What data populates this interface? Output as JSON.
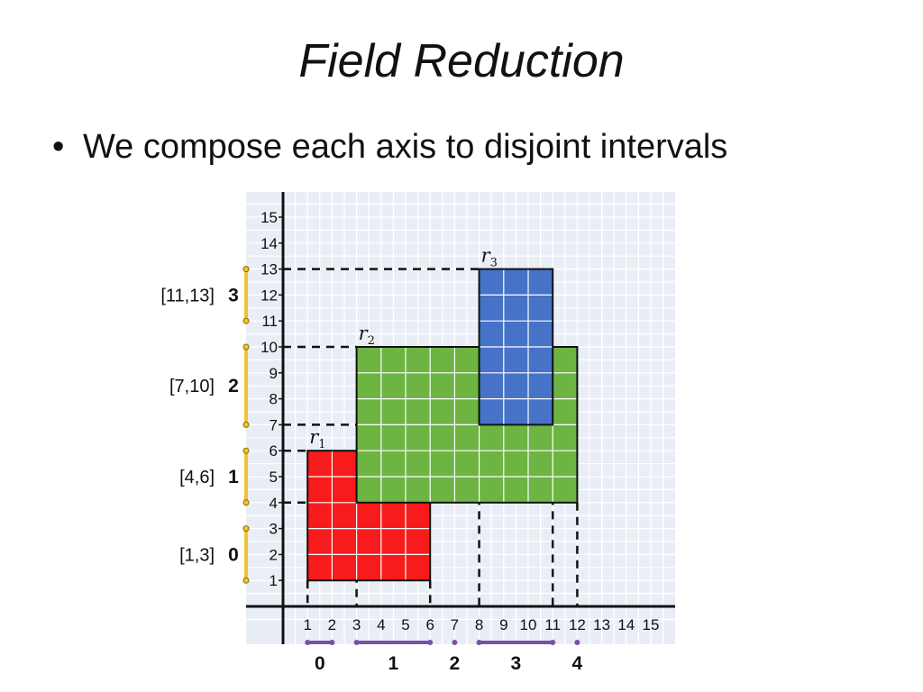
{
  "title": "Field Reduction",
  "bullet": "We compose each axis to disjoint intervals",
  "colors": {
    "r1": "#f81b1b",
    "r2": "#6db442",
    "r3": "#4672c8",
    "y_bar": "#f1c232",
    "x_bar": "#7a4fa8",
    "panel": "#e9eef6",
    "grid": "#ffffff"
  },
  "axis": {
    "min": 1,
    "max": 15,
    "ticks": [
      1,
      2,
      3,
      4,
      5,
      6,
      7,
      8,
      9,
      10,
      11,
      12,
      13,
      14,
      15
    ]
  },
  "rects": [
    {
      "label": "r",
      "sub": "1",
      "x": [
        1,
        6
      ],
      "y": [
        1,
        6
      ],
      "color": "#f81b1b"
    },
    {
      "label": "r",
      "sub": "2",
      "x": [
        3,
        12
      ],
      "y": [
        4,
        10
      ],
      "color": "#6db442"
    },
    {
      "label": "r",
      "sub": "3",
      "x": [
        8,
        11
      ],
      "y": [
        7,
        13
      ],
      "color": "#4672c8"
    }
  ],
  "dashed_x": [
    1,
    3,
    6,
    8,
    11,
    12
  ],
  "dashed_y": [
    4,
    6,
    7,
    10,
    13
  ],
  "y_intervals": [
    {
      "index": "0",
      "label": "[1,3]",
      "range": [
        1,
        3
      ]
    },
    {
      "index": "1",
      "label": "[4,6]",
      "range": [
        4,
        6
      ]
    },
    {
      "index": "2",
      "label": "[7,10]",
      "range": [
        7,
        10
      ]
    },
    {
      "index": "3",
      "label": "[11,13]",
      "range": [
        11,
        13
      ]
    }
  ],
  "x_intervals": [
    {
      "index": "0",
      "range": [
        1,
        2
      ]
    },
    {
      "index": "1",
      "range": [
        3,
        6
      ]
    },
    {
      "index": "2",
      "range": [
        7,
        7
      ]
    },
    {
      "index": "3",
      "range": [
        8,
        11
      ]
    },
    {
      "index": "4",
      "range": [
        12,
        12
      ]
    }
  ]
}
